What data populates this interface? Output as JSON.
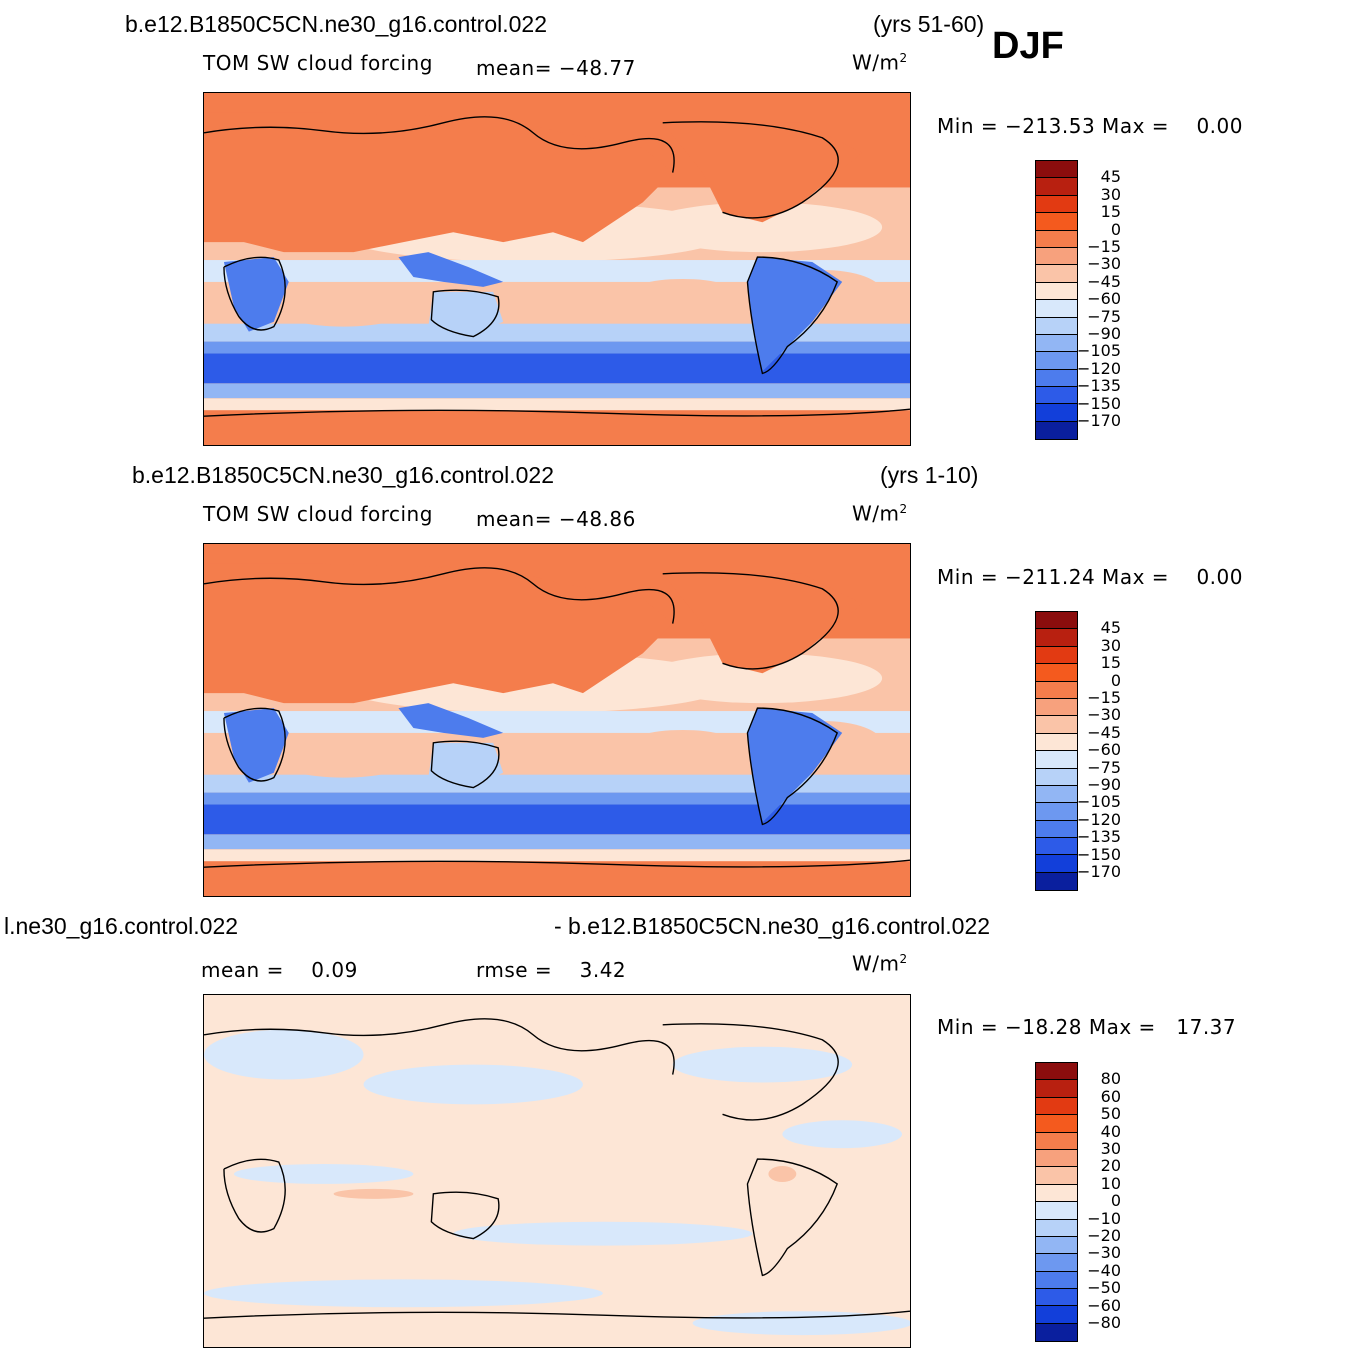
{
  "panels": [
    {
      "case_title": "b.e12.B1850C5CN.ne30_g16.control.022",
      "years": "(yrs 51-60)",
      "variable": "TOM SW cloud forcing",
      "stat_text": "mean= −48.77",
      "units_base": "W/m",
      "units_exp": "2",
      "minmax": "Min = −213.53 Max =    0.00",
      "colorbar_labels": [
        "45",
        "30",
        "15",
        "0",
        "−15",
        "−30",
        "−45",
        "−60",
        "−75",
        "−90",
        "−105",
        "−120",
        "−135",
        "−150",
        "−170"
      ],
      "colorbar_colors": [
        "#8b0d0d",
        "#b82010",
        "#e23a12",
        "#f45a1e",
        "#f47d4c",
        "#f7a17d",
        "#fac4a8",
        "#fde6d6",
        "#d8e8fb",
        "#b7d2f8",
        "#92b6f4",
        "#6d98f0",
        "#4d7ced",
        "#2d5be8",
        "#123fda",
        "#0a1f9e"
      ]
    },
    {
      "case_title": "b.e12.B1850C5CN.ne30_g16.control.022",
      "years": "(yrs 1-10)",
      "variable": "TOM SW cloud forcing",
      "stat_text": "mean= −48.86",
      "units_base": "W/m",
      "units_exp": "2",
      "minmax": "Min = −211.24 Max =    0.00",
      "colorbar_labels": [
        "45",
        "30",
        "15",
        "0",
        "−15",
        "−30",
        "−45",
        "−60",
        "−75",
        "−90",
        "−105",
        "−120",
        "−135",
        "−150",
        "−170"
      ],
      "colorbar_colors": [
        "#8b0d0d",
        "#b82010",
        "#e23a12",
        "#f45a1e",
        "#f47d4c",
        "#f7a17d",
        "#fac4a8",
        "#fde6d6",
        "#d8e8fb",
        "#b7d2f8",
        "#92b6f4",
        "#6d98f0",
        "#4d7ced",
        "#2d5be8",
        "#123fda",
        "#0a1f9e"
      ]
    },
    {
      "left_title": "l.ne30_g16.control.022",
      "right_title": "- b.e12.B1850C5CN.ne30_g16.control.022",
      "mean_text": "mean =    0.09",
      "rmse_text": "rmse =    3.42",
      "units_base": "W/m",
      "units_exp": "2",
      "minmax": "Min = −18.28 Max =   17.37",
      "colorbar_labels": [
        "80",
        "60",
        "50",
        "40",
        "30",
        "20",
        "10",
        "0",
        "−10",
        "−20",
        "−30",
        "−40",
        "−50",
        "−60",
        "−80"
      ],
      "colorbar_colors": [
        "#8b0d0d",
        "#b82010",
        "#e23a12",
        "#f45a1e",
        "#f47d4c",
        "#f7a17d",
        "#fac4a8",
        "#fde6d6",
        "#d8e8fb",
        "#b7d2f8",
        "#92b6f4",
        "#6d98f0",
        "#4d7ced",
        "#2d5be8",
        "#123fda",
        "#0a1f9e"
      ]
    }
  ],
  "season": "DJF"
}
